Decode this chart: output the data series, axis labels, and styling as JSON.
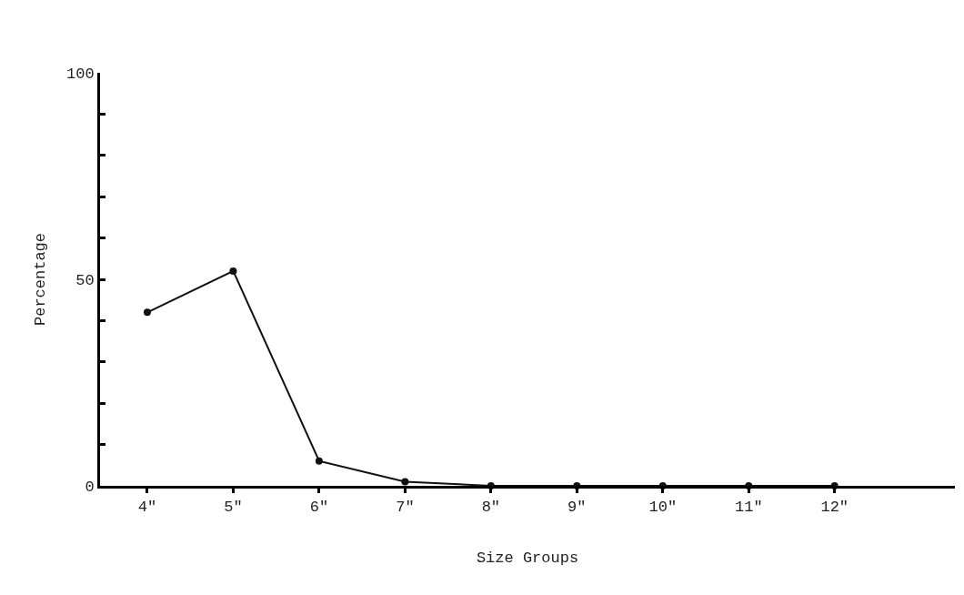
{
  "chart_data": {
    "type": "line",
    "xlabel": "Size Groups",
    "ylabel": "Percentage",
    "categories": [
      "4\"",
      "5\"",
      "6\"",
      "7\"",
      "8\"",
      "9\"",
      "10\"",
      "11\"",
      "12\""
    ],
    "series": [
      {
        "color": "#111111",
        "values": [
          42,
          52,
          6,
          1,
          0,
          0,
          0,
          0,
          0
        ]
      }
    ],
    "ylim": [
      0,
      100
    ],
    "yticks": [
      0,
      {
        "value": 10,
        "label": null
      },
      {
        "value": 20,
        "label": null
      },
      {
        "value": 30,
        "label": null
      },
      {
        "value": 40,
        "label": null
      },
      50,
      {
        "value": 60,
        "label": null
      },
      {
        "value": 70,
        "label": null
      },
      {
        "value": 80,
        "label": null
      },
      {
        "value": 90,
        "label": null
      },
      100
    ],
    "grid": false,
    "marker": "circle",
    "line_style": "solid"
  }
}
